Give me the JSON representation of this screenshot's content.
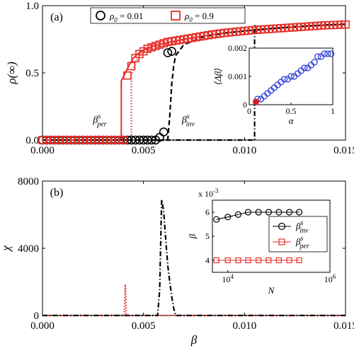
{
  "chart_data": [
    {
      "type": "scatter",
      "panel": "(a)",
      "xlabel": "β",
      "ylabel": "ρ(∞)",
      "xlim": [
        0,
        0.015
      ],
      "ylim": [
        0,
        1
      ],
      "xticks": [
        "0.000",
        "0.005",
        "0.010",
        "0.015"
      ],
      "yticks": [
        "0.0",
        "0.5",
        "1.0"
      ],
      "xtick_values": [
        0,
        0.005,
        0.01,
        0.015
      ],
      "ytick_values": [
        0,
        0.5,
        1
      ],
      "legend_position": "top",
      "series": [
        {
          "name": "ρ0 = 0.01",
          "label_main": "ρ",
          "label_sub": "0",
          "label_rest": " = 0.01",
          "marker": "circle",
          "color": "#000000",
          "x": [
            0,
            0.0002,
            0.0004,
            0.0006,
            0.0008,
            0.001,
            0.0012,
            0.0014,
            0.0016,
            0.0018,
            0.002,
            0.0022,
            0.0024,
            0.0026,
            0.0028,
            0.003,
            0.0032,
            0.0034,
            0.0036,
            0.0038,
            0.004,
            0.0042,
            0.0044,
            0.0046,
            0.0048,
            0.005,
            0.0052,
            0.0054,
            0.0056,
            0.0058,
            0.006,
            0.0062,
            0.0064
          ],
          "y": [
            0,
            0,
            0,
            0,
            0,
            0,
            0,
            0,
            0,
            0,
            0,
            0,
            0,
            0,
            0,
            0,
            0,
            0,
            0,
            0,
            0,
            0,
            0,
            0,
            0,
            0,
            0,
            0,
            0,
            0.02,
            0.06,
            0.65,
            0.66
          ]
        },
        {
          "name": "ρ0 = 0.9",
          "label_main": "ρ",
          "label_sub": "0",
          "label_rest": " = 0.9",
          "marker": "square",
          "color": "#e8302a",
          "x": [
            0,
            0.0002,
            0.0004,
            0.0006,
            0.0008,
            0.001,
            0.0012,
            0.0014,
            0.0016,
            0.0018,
            0.002,
            0.0022,
            0.0024,
            0.0026,
            0.0028,
            0.003,
            0.0032,
            0.0034,
            0.0036,
            0.0038,
            0.004,
            0.0042,
            0.0044,
            0.0046,
            0.0048,
            0.005,
            0.0052,
            0.0054,
            0.0056,
            0.0058,
            0.006,
            0.0062,
            0.0064,
            0.0066,
            0.0068,
            0.007,
            0.0072,
            0.0074,
            0.0076,
            0.0078,
            0.008,
            0.0082,
            0.0084,
            0.0086,
            0.0088,
            0.009,
            0.0092,
            0.0094,
            0.0096,
            0.0098,
            0.01,
            0.0102,
            0.0104,
            0.0106,
            0.0108,
            0.011,
            0.0112,
            0.0114,
            0.0116,
            0.0118,
            0.012,
            0.0122,
            0.0124,
            0.0126,
            0.0128,
            0.013,
            0.0132,
            0.0134,
            0.0136,
            0.0138,
            0.014,
            0.0142,
            0.0144,
            0.0146,
            0.0148,
            0.015
          ],
          "y": [
            0,
            0,
            0,
            0,
            0,
            0,
            0,
            0,
            0,
            0,
            0,
            0,
            0,
            0,
            0,
            0,
            0,
            0,
            0,
            0,
            0,
            0.48,
            0.55,
            0.61,
            0.64,
            0.66,
            0.68,
            0.69,
            0.7,
            0.71,
            0.72,
            0.73,
            0.735,
            0.74,
            0.745,
            0.75,
            0.755,
            0.76,
            0.765,
            0.77,
            0.775,
            0.78,
            0.785,
            0.789,
            0.793,
            0.797,
            0.8,
            0.803,
            0.806,
            0.809,
            0.812,
            0.815,
            0.818,
            0.82,
            0.822,
            0.824,
            0.826,
            0.828,
            0.83,
            0.832,
            0.834,
            0.836,
            0.838,
            0.84,
            0.842,
            0.844,
            0.846,
            0.848,
            0.85,
            0.852,
            0.854,
            0.855,
            0.856,
            0.857,
            0.858,
            0.86
          ]
        }
      ],
      "lines": [
        {
          "style": "solid",
          "color": "#e8302a",
          "x": [
            0,
            0.0039,
            0.0039,
            0.0041,
            0.0043,
            0.0045,
            0.0047,
            0.005,
            0.0055,
            0.006,
            0.007,
            0.008,
            0.009,
            0.01,
            0.011,
            0.012,
            0.013,
            0.014,
            0.015
          ],
          "y": [
            0,
            0,
            0.44,
            0.5,
            0.56,
            0.61,
            0.64,
            0.67,
            0.7,
            0.72,
            0.75,
            0.775,
            0.797,
            0.812,
            0.824,
            0.836,
            0.846,
            0.855,
            0.86
          ]
        },
        {
          "style": "dotted",
          "color": "#e8302a",
          "x": [
            0,
            0.0044,
            0.0044,
            0.0046,
            0.005,
            0.006,
            0.007,
            0.008,
            0.009,
            0.01,
            0.011,
            0.012,
            0.013,
            0.014,
            0.015
          ],
          "y": [
            0,
            0,
            0.48,
            0.58,
            0.66,
            0.71,
            0.745,
            0.772,
            0.795,
            0.812,
            0.825,
            0.836,
            0.846,
            0.855,
            0.86
          ]
        },
        {
          "style": "dashed",
          "color": "#000000",
          "x": [
            0,
            0.0062,
            0.0063,
            0.0064,
            0.0065,
            0.0066,
            0.007,
            0.008,
            0.009,
            0.01,
            0.011,
            0.012,
            0.013,
            0.014,
            0.015
          ],
          "y": [
            0,
            0,
            0.18,
            0.42,
            0.56,
            0.63,
            0.71,
            0.77,
            0.795,
            0.812,
            0.826,
            0.838,
            0.848,
            0.856,
            0.862
          ]
        },
        {
          "style": "dashdot",
          "color": "#000000",
          "x": [
            0,
            0.0105,
            0.0105,
            0.0106,
            0.011,
            0.012,
            0.013,
            0.014,
            0.015
          ],
          "y": [
            0,
            0,
            0.86,
            0.82,
            0.825,
            0.838,
            0.848,
            0.856,
            0.862
          ]
        }
      ],
      "annotations": [
        {
          "main": "β",
          "sup": "s",
          "sub": "per",
          "x": 0.0025,
          "y": 0.13
        },
        {
          "main": "β",
          "sup": "s",
          "sub": "inv",
          "x": 0.0069,
          "y": 0.13
        }
      ],
      "inset": {
        "type": "scatter",
        "xlabel": "α",
        "ylabel": "⟨Δβ⟩",
        "xlim": [
          0,
          1
        ],
        "ylim": [
          0,
          0.002
        ],
        "xticks": [
          "0",
          "0.5",
          "1"
        ],
        "xtick_values": [
          0,
          0.5,
          1
        ],
        "yticks": [
          "0",
          "0.001",
          "0.002"
        ],
        "ytick_values": [
          0,
          0.001,
          0.002
        ],
        "series": [
          {
            "marker": "circle",
            "color": "#2f3fd6",
            "x": [
              0.1,
              0.14,
              0.18,
              0.22,
              0.26,
              0.3,
              0.34,
              0.38,
              0.42,
              0.46,
              0.5,
              0.54,
              0.58,
              0.62,
              0.66,
              0.7,
              0.74,
              0.78,
              0.82,
              0.86,
              0.9,
              0.94,
              0.98
            ],
            "y": [
              0.0002,
              0.0002,
              0.0003,
              0.0004,
              0.0005,
              0.0006,
              0.0007,
              0.0008,
              0.0009,
              0.0009,
              0.001,
              0.001,
              0.0011,
              0.0012,
              0.0013,
              0.0013,
              0.0014,
              0.0015,
              0.0017,
              0.0017,
              0.0018,
              0.0018,
              0.0018
            ]
          },
          {
            "marker": "filled-circle",
            "color": "#d62020",
            "x": [
              0.08
            ],
            "y": [
              0.0001
            ]
          }
        ]
      }
    },
    {
      "type": "line",
      "panel": "(b)",
      "xlabel": "β",
      "ylabel": "χ",
      "xlim": [
        0,
        0.015
      ],
      "ylim": [
        0,
        8000
      ],
      "xticks": [
        "0.000",
        "0.005",
        "0.010",
        "0.015"
      ],
      "yticks": [
        "0",
        "4000",
        "8000"
      ],
      "xtick_values": [
        0,
        0.005,
        0.01,
        0.015
      ],
      "ytick_values": [
        0,
        4000,
        8000
      ],
      "series": [
        {
          "style": "dotted",
          "color": "#e8302a",
          "x": [
            0,
            0.00405,
            0.0041,
            0.00415,
            0.0042,
            0.015
          ],
          "y": [
            0,
            0,
            1850,
            0,
            0,
            0
          ]
        },
        {
          "style": "dashdot",
          "color": "#000000",
          "x": [
            0,
            0.0057,
            0.0058,
            0.0059,
            0.006,
            0.0061,
            0.0062,
            0.0063,
            0.0064,
            0.0065,
            0.0066,
            0.015
          ],
          "y": [
            0,
            0,
            1500,
            6900,
            6200,
            4500,
            3000,
            2000,
            1100,
            400,
            0,
            0
          ]
        }
      ],
      "inset": {
        "type": "line",
        "xlabel": "N",
        "ylabel": "β",
        "scale_text": "x 10",
        "scale_exp": "-3",
        "xscale": "log",
        "xlim": [
          5000,
          1000000
        ],
        "ylim": [
          0.0035,
          0.0065
        ],
        "xtick_values": [
          10000,
          1000000
        ],
        "xtick_base": "10",
        "xtick_exps": [
          "4",
          "6"
        ],
        "ytick_values": [
          0.004,
          0.005,
          0.006
        ],
        "yticks": [
          "4",
          "5",
          "6"
        ],
        "legend_position": "right",
        "series": [
          {
            "sub": "inv",
            "marker": "circle",
            "color": "#000000",
            "x": [
              6000,
              10000,
              16000,
              25000,
              40000,
              63000,
              100000,
              160000,
              250000
            ],
            "y": [
              0.0057,
              0.0058,
              0.0059,
              0.006,
              0.006,
              0.006,
              0.006,
              0.006,
              0.006
            ]
          },
          {
            "sub": "per",
            "marker": "square",
            "color": "#e8302a",
            "x": [
              6000,
              10000,
              16000,
              25000,
              40000,
              63000,
              100000,
              160000,
              250000
            ],
            "y": [
              0.004,
              0.004,
              0.004,
              0.004,
              0.004,
              0.004,
              0.004,
              0.004,
              0.004
            ]
          }
        ]
      }
    }
  ]
}
